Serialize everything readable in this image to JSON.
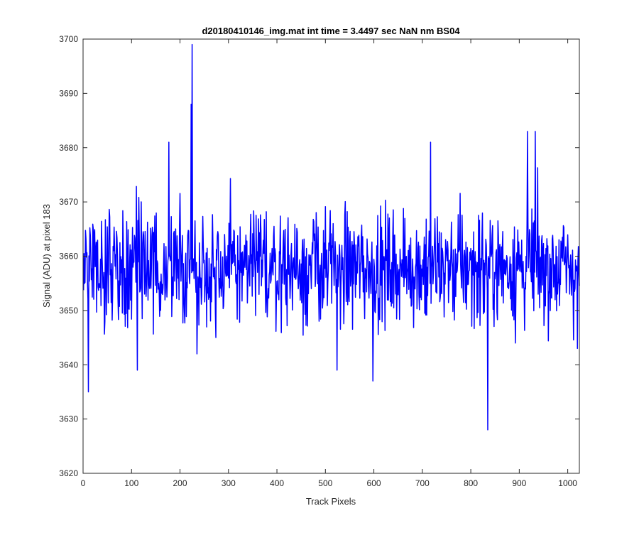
{
  "chart_data": {
    "type": "line",
    "title": "d20180410146_img.mat int time = 3.4497 sec  NaN nm BS04",
    "xlabel": "Track Pixels",
    "ylabel": "Signal (ADU) at pixel 183",
    "xlim": [
      0,
      1024
    ],
    "ylim": [
      3620,
      3700
    ],
    "xticks": [
      0,
      100,
      200,
      300,
      400,
      500,
      600,
      700,
      800,
      900,
      1000
    ],
    "yticks": [
      3620,
      3630,
      3640,
      3650,
      3660,
      3670,
      3680,
      3690,
      3700
    ],
    "grid": false,
    "legend": "none",
    "series": [
      {
        "color": "#0000ff",
        "baseline_mean": 3658,
        "noise_range": [
          3642,
          3672
        ],
        "n_points": 1024,
        "notable_points": [
          {
            "x": 10,
            "y": 3635
          },
          {
            "x": 111,
            "y": 3639
          },
          {
            "x": 176,
            "y": 3681
          },
          {
            "x": 222,
            "y": 3688
          },
          {
            "x": 224,
            "y": 3699
          },
          {
            "x": 234,
            "y": 3642
          },
          {
            "x": 523,
            "y": 3639
          },
          {
            "x": 597,
            "y": 3637
          },
          {
            "x": 716,
            "y": 3681
          },
          {
            "x": 834,
            "y": 3628
          },
          {
            "x": 916,
            "y": 3683
          },
          {
            "x": 932,
            "y": 3683
          },
          {
            "x": 1019,
            "y": 3643
          }
        ]
      }
    ]
  }
}
